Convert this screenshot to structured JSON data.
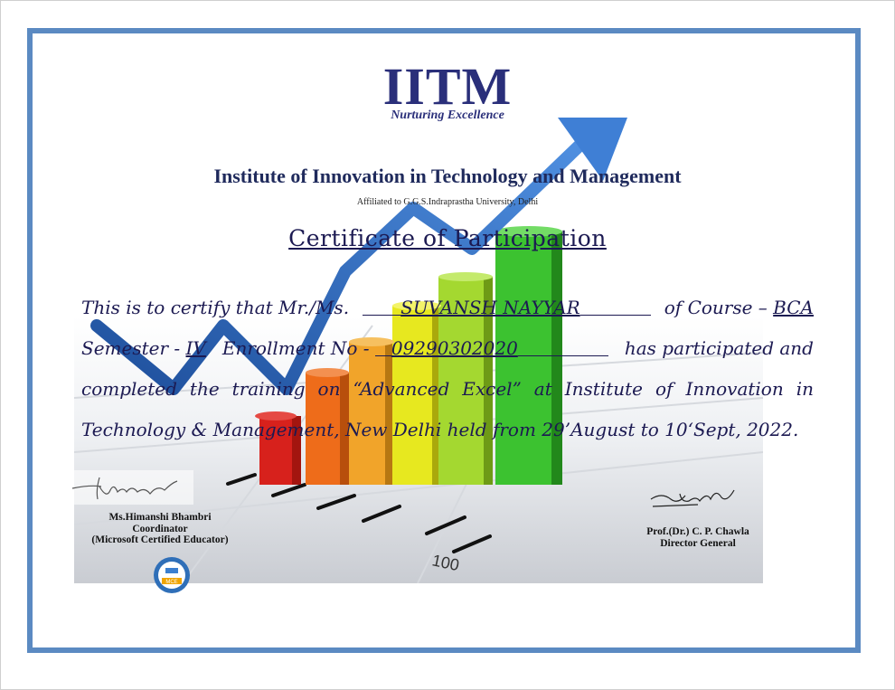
{
  "logo": {
    "letters": "IITM",
    "tagline": "Nurturing Excellence"
  },
  "institute": {
    "name": "Institute of Innovation in Technology and Management",
    "affiliation": "Affiliated to G.G.S.Indraprastha University, Delhi"
  },
  "certificate": {
    "title": "Certificate of Participation",
    "line1_prefix": "This is to certify that Mr./Ms.",
    "name": "SUVANSH NAYYAR",
    "line1_course_label": "of Course –",
    "course": "BCA",
    "semester_label": "Semester -",
    "semester": "IV",
    "enrollment_label": "Enrollment No -",
    "enrollment": "09290302020",
    "line2_suffix": "has participated and",
    "line3": "completed the training on “Advanced Excel” at Institute of Innovation in",
    "line4": "Technology & Management, New Delhi held  from 29’August to 10‘Sept, 2022."
  },
  "signatories": {
    "left": {
      "name": "Ms.Himanshi Bhambri",
      "role": "Coordinator",
      "credential": "(Microsoft Certified Educator)",
      "badge_text": "MCE"
    },
    "right": {
      "name": "Prof.(Dr.) C. P. Chawla",
      "role": "Director  General"
    }
  },
  "background_chart_tick_label": "100",
  "colors": {
    "frame": "#5b8ac2",
    "logo": "#2a2f7a",
    "text": "#1c1a52"
  }
}
